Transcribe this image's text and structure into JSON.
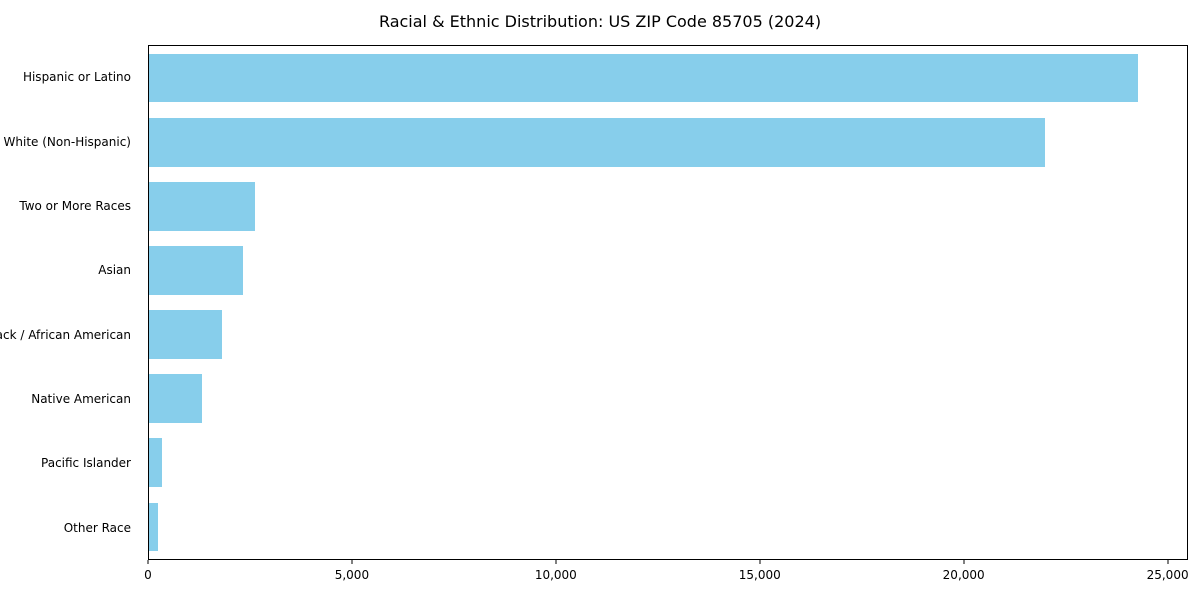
{
  "chart_data": {
    "type": "bar",
    "orientation": "horizontal",
    "title": "Racial & Ethnic Distribution: US ZIP Code 85705 (2024)",
    "xlabel": "",
    "ylabel": "",
    "categories": [
      "Hispanic or Latino",
      "White (Non-Hispanic)",
      "Two or More Races",
      "Asian",
      "Black / African American",
      "Native American",
      "Pacific Islander",
      "Other Race"
    ],
    "values": [
      24300,
      22000,
      2600,
      2300,
      1800,
      1300,
      320,
      220
    ],
    "bar_color": "#87CEEB",
    "xlim": [
      0,
      25500
    ],
    "x_ticks": [
      0,
      5000,
      10000,
      15000,
      20000,
      25000
    ],
    "x_tick_labels": [
      "0",
      "5,000",
      "10,000",
      "15,000",
      "20,000",
      "25,000"
    ],
    "grid": false,
    "legend": "none",
    "background": "#ffffff"
  }
}
